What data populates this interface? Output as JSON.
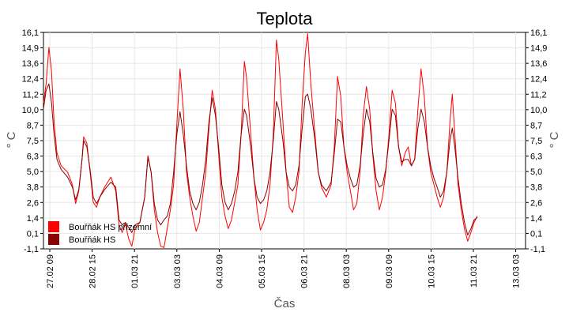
{
  "chart_data": {
    "type": "line",
    "title": "Teplota",
    "xlabel": "Čas",
    "ylabel": "° C",
    "ylim": [
      -1.1,
      16.1
    ],
    "y_ticks": [
      "-1,1",
      "0,1",
      "1,4",
      "2,6",
      "3,8",
      "5,0",
      "6,3",
      "7,5",
      "8,7",
      "10,0",
      "11,2",
      "12,4",
      "13,6",
      "14,9",
      "16,1"
    ],
    "x_ticks": [
      "27.02 09",
      "28.02 15",
      "01.03 21",
      "03.03 03",
      "04.03 09",
      "05.03 15",
      "06.03 21",
      "08.03 03",
      "09.03 09",
      "10.03 15",
      "11.03 21",
      "13.03 03"
    ],
    "x_range_days": [
      0,
      15.0
    ],
    "grid": true,
    "legend_position": "bottom-left",
    "series": [
      {
        "name": "Bouřňák HS přízemní",
        "color": "#ff0000",
        "points": [
          [
            0.0,
            10.5
          ],
          [
            0.08,
            12.0
          ],
          [
            0.17,
            14.9
          ],
          [
            0.25,
            13.0
          ],
          [
            0.33,
            9.0
          ],
          [
            0.42,
            6.5
          ],
          [
            0.55,
            5.5
          ],
          [
            0.75,
            5.0
          ],
          [
            0.9,
            4.0
          ],
          [
            1.0,
            2.5
          ],
          [
            1.1,
            3.5
          ],
          [
            1.2,
            6.0
          ],
          [
            1.25,
            7.8
          ],
          [
            1.35,
            7.3
          ],
          [
            1.45,
            5.0
          ],
          [
            1.55,
            2.6
          ],
          [
            1.65,
            2.2
          ],
          [
            1.75,
            3.0
          ],
          [
            1.9,
            3.8
          ],
          [
            2.1,
            4.6
          ],
          [
            2.25,
            3.5
          ],
          [
            2.35,
            0.8
          ],
          [
            2.45,
            0.2
          ],
          [
            2.55,
            0.9
          ],
          [
            2.65,
            -0.3
          ],
          [
            2.75,
            -0.9
          ],
          [
            2.85,
            0.5
          ],
          [
            3.0,
            1.0
          ],
          [
            3.15,
            3.0
          ],
          [
            3.25,
            6.3
          ],
          [
            3.35,
            5.0
          ],
          [
            3.45,
            2.0
          ],
          [
            3.55,
            0.2
          ],
          [
            3.65,
            -0.9
          ],
          [
            3.75,
            -1.0
          ],
          [
            3.85,
            0.5
          ],
          [
            3.95,
            2.0
          ],
          [
            4.05,
            4.0
          ],
          [
            4.15,
            8.8
          ],
          [
            4.25,
            13.2
          ],
          [
            4.35,
            10.0
          ],
          [
            4.45,
            5.0
          ],
          [
            4.55,
            3.0
          ],
          [
            4.65,
            1.5
          ],
          [
            4.75,
            0.3
          ],
          [
            4.85,
            1.0
          ],
          [
            4.95,
            3.0
          ],
          [
            5.05,
            5.0
          ],
          [
            5.15,
            8.5
          ],
          [
            5.25,
            11.5
          ],
          [
            5.35,
            10.0
          ],
          [
            5.45,
            6.5
          ],
          [
            5.55,
            3.0
          ],
          [
            5.65,
            1.5
          ],
          [
            5.75,
            0.5
          ],
          [
            5.85,
            1.2
          ],
          [
            5.95,
            2.6
          ],
          [
            6.05,
            4.0
          ],
          [
            6.15,
            8.0
          ],
          [
            6.25,
            13.8
          ],
          [
            6.32,
            12.5
          ],
          [
            6.45,
            8.0
          ],
          [
            6.55,
            4.5
          ],
          [
            6.65,
            2.0
          ],
          [
            6.75,
            0.4
          ],
          [
            6.85,
            1.0
          ],
          [
            6.95,
            2.0
          ],
          [
            7.05,
            4.0
          ],
          [
            7.15,
            8.0
          ],
          [
            7.25,
            15.5
          ],
          [
            7.32,
            14.0
          ],
          [
            7.45,
            9.0
          ],
          [
            7.55,
            5.0
          ],
          [
            7.65,
            2.2
          ],
          [
            7.75,
            1.8
          ],
          [
            7.85,
            3.0
          ],
          [
            7.95,
            5.0
          ],
          [
            8.05,
            10.5
          ],
          [
            8.15,
            14.5
          ],
          [
            8.22,
            16.0
          ],
          [
            8.32,
            12.0
          ],
          [
            8.45,
            8.0
          ],
          [
            8.55,
            5.0
          ],
          [
            8.65,
            3.8
          ],
          [
            8.8,
            3.0
          ],
          [
            8.95,
            4.0
          ],
          [
            9.05,
            7.0
          ],
          [
            9.15,
            12.6
          ],
          [
            9.25,
            11.0
          ],
          [
            9.35,
            7.0
          ],
          [
            9.45,
            5.0
          ],
          [
            9.55,
            3.5
          ],
          [
            9.65,
            2.0
          ],
          [
            9.75,
            2.5
          ],
          [
            9.85,
            5.0
          ],
          [
            9.95,
            9.5
          ],
          [
            10.05,
            11.8
          ],
          [
            10.15,
            10.0
          ],
          [
            10.25,
            6.3
          ],
          [
            10.35,
            3.5
          ],
          [
            10.45,
            2.0
          ],
          [
            10.55,
            3.0
          ],
          [
            10.65,
            5.0
          ],
          [
            10.75,
            8.0
          ],
          [
            10.85,
            11.5
          ],
          [
            10.95,
            10.5
          ],
          [
            11.05,
            7.0
          ],
          [
            11.15,
            5.5
          ],
          [
            11.25,
            6.5
          ],
          [
            11.35,
            7.0
          ],
          [
            11.45,
            5.5
          ],
          [
            11.55,
            6.0
          ],
          [
            11.65,
            10.0
          ],
          [
            11.75,
            13.2
          ],
          [
            11.85,
            11.0
          ],
          [
            11.95,
            7.0
          ],
          [
            12.05,
            5.0
          ],
          [
            12.15,
            4.0
          ],
          [
            12.25,
            3.0
          ],
          [
            12.35,
            2.2
          ],
          [
            12.45,
            3.0
          ],
          [
            12.55,
            5.0
          ],
          [
            12.65,
            9.0
          ],
          [
            12.72,
            11.2
          ],
          [
            12.8,
            8.0
          ],
          [
            12.9,
            4.0
          ],
          [
            13.0,
            2.0
          ],
          [
            13.1,
            0.5
          ],
          [
            13.2,
            -0.5
          ],
          [
            13.3,
            0.2
          ],
          [
            13.4,
            1.0
          ],
          [
            13.5,
            1.5
          ]
        ]
      },
      {
        "name": "Bouřňák HS",
        "color": "#8b0000",
        "points": [
          [
            0.0,
            10.0
          ],
          [
            0.08,
            11.5
          ],
          [
            0.17,
            12.0
          ],
          [
            0.25,
            10.5
          ],
          [
            0.33,
            8.0
          ],
          [
            0.42,
            6.0
          ],
          [
            0.55,
            5.2
          ],
          [
            0.75,
            4.6
          ],
          [
            0.9,
            3.8
          ],
          [
            1.0,
            2.8
          ],
          [
            1.1,
            3.6
          ],
          [
            1.2,
            6.0
          ],
          [
            1.25,
            7.5
          ],
          [
            1.35,
            7.0
          ],
          [
            1.45,
            5.2
          ],
          [
            1.55,
            3.0
          ],
          [
            1.65,
            2.5
          ],
          [
            1.75,
            3.0
          ],
          [
            1.9,
            3.6
          ],
          [
            2.1,
            4.2
          ],
          [
            2.25,
            3.8
          ],
          [
            2.35,
            1.2
          ],
          [
            2.45,
            0.8
          ],
          [
            2.55,
            1.0
          ],
          [
            2.65,
            0.6
          ],
          [
            2.75,
            0.2
          ],
          [
            2.85,
            0.8
          ],
          [
            3.0,
            1.0
          ],
          [
            3.15,
            3.0
          ],
          [
            3.25,
            6.2
          ],
          [
            3.35,
            5.0
          ],
          [
            3.45,
            2.5
          ],
          [
            3.55,
            1.2
          ],
          [
            3.65,
            0.8
          ],
          [
            3.75,
            1.2
          ],
          [
            3.85,
            1.5
          ],
          [
            3.95,
            2.5
          ],
          [
            4.05,
            5.0
          ],
          [
            4.15,
            8.0
          ],
          [
            4.25,
            9.8
          ],
          [
            4.35,
            8.0
          ],
          [
            4.45,
            5.5
          ],
          [
            4.55,
            3.5
          ],
          [
            4.65,
            2.5
          ],
          [
            4.75,
            2.0
          ],
          [
            4.85,
            2.6
          ],
          [
            4.95,
            4.0
          ],
          [
            5.05,
            6.0
          ],
          [
            5.15,
            9.0
          ],
          [
            5.25,
            10.9
          ],
          [
            5.35,
            9.5
          ],
          [
            5.45,
            7.0
          ],
          [
            5.55,
            4.0
          ],
          [
            5.65,
            2.6
          ],
          [
            5.75,
            2.0
          ],
          [
            5.85,
            2.5
          ],
          [
            5.95,
            3.5
          ],
          [
            6.05,
            5.0
          ],
          [
            6.15,
            8.0
          ],
          [
            6.25,
            10.0
          ],
          [
            6.32,
            9.5
          ],
          [
            6.45,
            7.0
          ],
          [
            6.55,
            4.5
          ],
          [
            6.65,
            3.0
          ],
          [
            6.75,
            2.5
          ],
          [
            6.85,
            2.8
          ],
          [
            6.95,
            3.5
          ],
          [
            7.05,
            5.0
          ],
          [
            7.15,
            7.5
          ],
          [
            7.25,
            10.6
          ],
          [
            7.32,
            10.0
          ],
          [
            7.45,
            7.5
          ],
          [
            7.55,
            5.0
          ],
          [
            7.65,
            3.8
          ],
          [
            7.75,
            3.5
          ],
          [
            7.85,
            4.0
          ],
          [
            7.95,
            5.5
          ],
          [
            8.05,
            8.5
          ],
          [
            8.15,
            11.0
          ],
          [
            8.22,
            11.2
          ],
          [
            8.32,
            10.0
          ],
          [
            8.45,
            7.5
          ],
          [
            8.55,
            5.0
          ],
          [
            8.65,
            4.0
          ],
          [
            8.8,
            3.5
          ],
          [
            8.95,
            4.2
          ],
          [
            9.05,
            6.5
          ],
          [
            9.15,
            9.2
          ],
          [
            9.25,
            9.0
          ],
          [
            9.35,
            7.0
          ],
          [
            9.45,
            5.5
          ],
          [
            9.55,
            4.5
          ],
          [
            9.65,
            3.8
          ],
          [
            9.75,
            4.0
          ],
          [
            9.85,
            5.5
          ],
          [
            9.95,
            8.0
          ],
          [
            10.05,
            10.0
          ],
          [
            10.15,
            9.0
          ],
          [
            10.25,
            6.5
          ],
          [
            10.35,
            4.5
          ],
          [
            10.45,
            3.8
          ],
          [
            10.55,
            4.0
          ],
          [
            10.65,
            5.2
          ],
          [
            10.75,
            7.5
          ],
          [
            10.85,
            10.0
          ],
          [
            10.95,
            9.5
          ],
          [
            11.05,
            7.0
          ],
          [
            11.15,
            5.8
          ],
          [
            11.25,
            6.0
          ],
          [
            11.35,
            6.0
          ],
          [
            11.45,
            5.5
          ],
          [
            11.55,
            6.0
          ],
          [
            11.65,
            8.5
          ],
          [
            11.75,
            10.0
          ],
          [
            11.85,
            9.0
          ],
          [
            11.95,
            7.0
          ],
          [
            12.05,
            5.5
          ],
          [
            12.15,
            4.5
          ],
          [
            12.25,
            3.8
          ],
          [
            12.35,
            3.0
          ],
          [
            12.45,
            3.5
          ],
          [
            12.55,
            5.0
          ],
          [
            12.65,
            7.5
          ],
          [
            12.72,
            8.5
          ],
          [
            12.8,
            7.0
          ],
          [
            12.9,
            4.5
          ],
          [
            13.0,
            2.5
          ],
          [
            13.1,
            1.0
          ],
          [
            13.2,
            0.0
          ],
          [
            13.3,
            0.5
          ],
          [
            13.4,
            1.2
          ],
          [
            13.5,
            1.4
          ]
        ]
      }
    ]
  }
}
